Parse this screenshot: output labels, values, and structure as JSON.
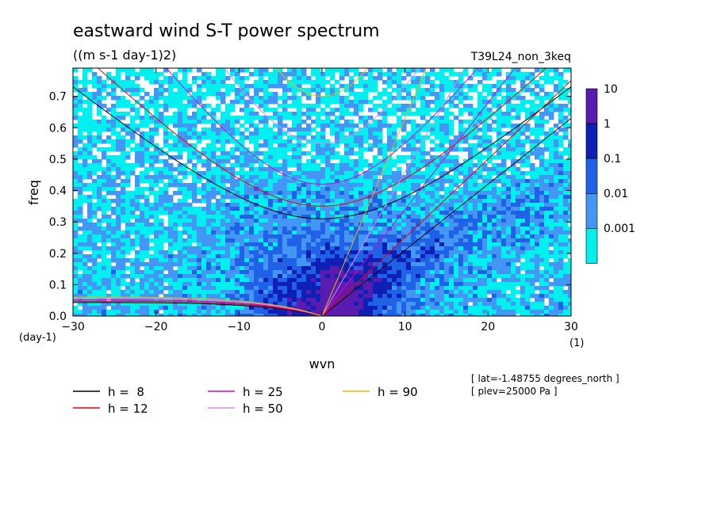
{
  "chart_data": {
    "type": "heatmap",
    "title": "eastward wind S-T power spectrum",
    "subtitle": "((m s-1 day-1)2)",
    "run_label": "T39L24_non_3keq",
    "xlabel": "wvn",
    "ylabel": "freq",
    "x_unit": "(1)",
    "y_unit": "(day-1)",
    "xlim": [
      -30,
      30
    ],
    "ylim": [
      0,
      0.79
    ],
    "xticks": [
      -30,
      -20,
      -10,
      0,
      10,
      20,
      30
    ],
    "yticks": [
      0.0,
      0.1,
      0.2,
      0.3,
      0.4,
      0.5,
      0.6,
      0.7
    ],
    "color_scale": {
      "levels": [
        "10",
        "1",
        "0.1",
        "0.01",
        "0.001"
      ],
      "colors": [
        "#5a1bb0",
        "#0d1fb5",
        "#1f62e8",
        "#4496f5",
        "#00f0f0"
      ]
    },
    "dispersion_curves": [
      {
        "name": "h =  8",
        "color": "#000000"
      },
      {
        "name": "h = 12",
        "color": "#ee0000"
      },
      {
        "name": "h = 25",
        "color": "#dd00cc"
      },
      {
        "name": "h = 50",
        "color": "#dd88ee"
      },
      {
        "name": "h = 90",
        "color": "#eebb00"
      }
    ],
    "annotations": [
      "[ lat=-1.48755 degrees_north ]",
      "[ plev=25000 Pa ]"
    ]
  }
}
